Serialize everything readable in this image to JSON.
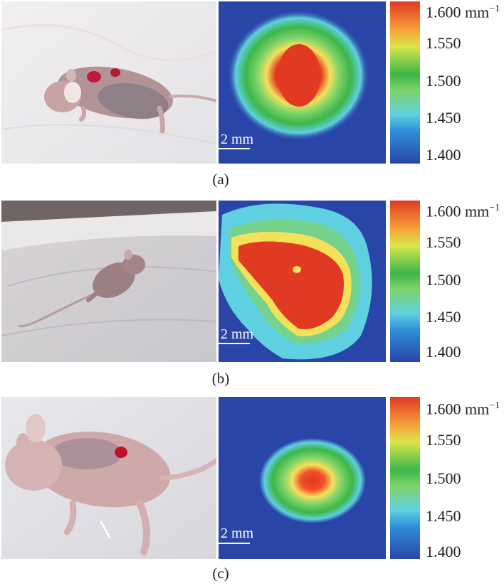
{
  "panels": [
    {
      "caption": "(a)",
      "scale_label": "2 mm",
      "colorbar": {
        "ticks": [
          "1.400",
          "1.450",
          "1.500",
          "1.550",
          "1.600"
        ],
        "unit": "mm",
        "unit_exp": "−1"
      }
    },
    {
      "caption": "(b)",
      "scale_label": "2 mm",
      "colorbar": {
        "ticks": [
          "1.400",
          "1.450",
          "1.500",
          "1.550",
          "1.600"
        ],
        "unit": "mm",
        "unit_exp": "−1"
      }
    },
    {
      "caption": "(c)",
      "scale_label": "2 mm",
      "colorbar": {
        "ticks": [
          "1.400",
          "1.450",
          "1.500",
          "1.550",
          "1.600"
        ],
        "unit": "mm",
        "unit_exp": "−1"
      }
    }
  ],
  "colors": {
    "background_blue": "#2a45a8",
    "colormap": [
      "#2a45a8",
      "#2f8fd8",
      "#5fd0e0",
      "#7fd36a",
      "#3cb648",
      "#d9e64a",
      "#f4e15a",
      "#f6a43a",
      "#e03a22"
    ]
  }
}
